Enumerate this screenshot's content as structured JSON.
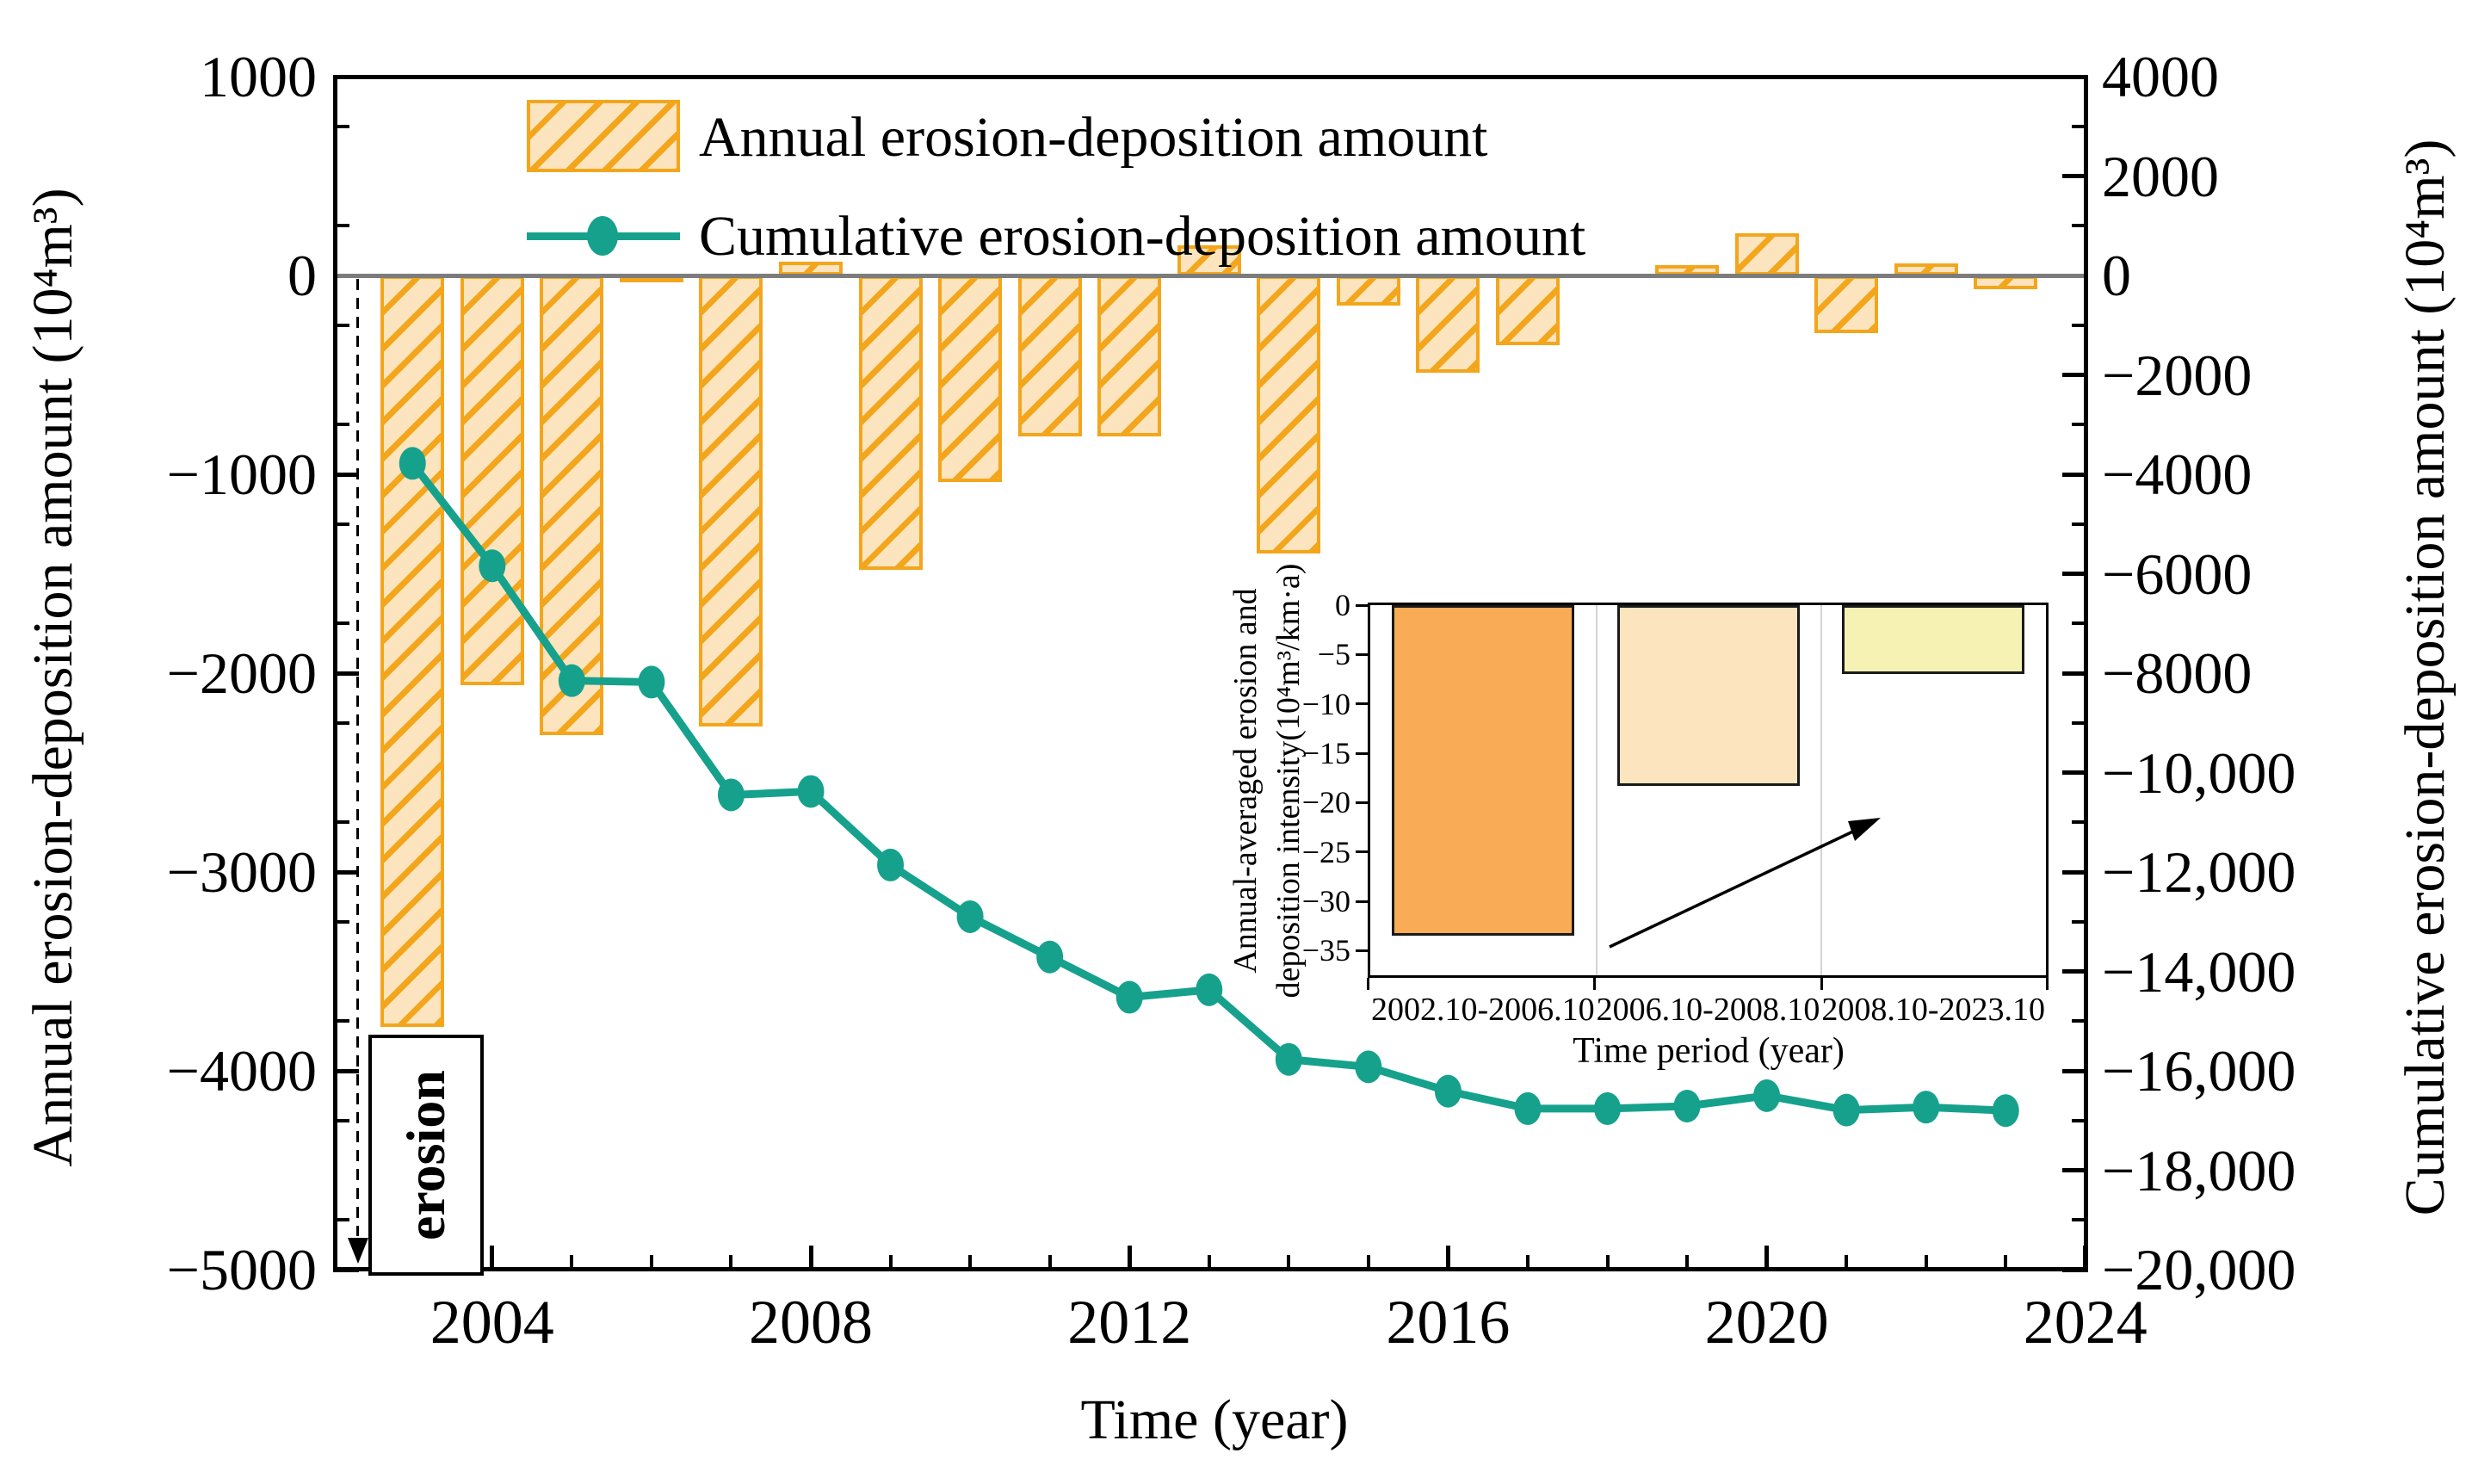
{
  "figure": {
    "background": "#ffffff",
    "x_axis_title": "Time (year)",
    "left_axis_title": "Annual erosion-deposition amount (10⁴m³)",
    "right_axis_title": "Cumulative erosion-deposition amount (10⁴m³)"
  },
  "legend": {
    "annual_label": "Annual erosion-deposition amount",
    "cumulative_label": "Cumulative erosion-deposition amount"
  },
  "erosion_annotation": {
    "label": "erosion"
  },
  "axes": {
    "left": {
      "tick_labels": [
        "1000",
        "0",
        "−1000",
        "−2000",
        "−3000",
        "−4000",
        "−5000"
      ],
      "tick_values": [
        1000,
        0,
        -1000,
        -2000,
        -3000,
        -4000,
        -5000
      ],
      "minor_step": 500,
      "range": [
        -5000,
        1000
      ]
    },
    "right": {
      "tick_labels": [
        "4000",
        "2000",
        "0",
        "−2000",
        "−4000",
        "−6000",
        "−8000",
        "−10,000",
        "−12,000",
        "−14,000",
        "−16,000",
        "−18,000",
        "−20,000"
      ],
      "tick_values": [
        4000,
        2000,
        0,
        -2000,
        -4000,
        -6000,
        -8000,
        -10000,
        -12000,
        -14000,
        -16000,
        -18000,
        -20000
      ],
      "minor_step": 1000,
      "range": [
        -20000,
        4000
      ]
    },
    "x": {
      "tick_labels": [
        "2004",
        "2008",
        "2012",
        "2016",
        "2020",
        "2024"
      ],
      "tick_values": [
        2004,
        2008,
        2012,
        2016,
        2020,
        2024
      ],
      "minor_step": 1,
      "range": [
        2002.14,
        2024
      ]
    }
  },
  "colors": {
    "bar_fill": "#FBE4BE",
    "bar_hatch": "#F3A61C",
    "line": "#16A18C",
    "zero_line": "#7C7C7C",
    "inset_bar_fills": [
      "#F9AB55",
      "#FCE5BE",
      "#F5F2B3"
    ],
    "inset_bar_border": "#1a1a1a"
  },
  "chart_data": [
    {
      "id": "main",
      "type": "bar+line",
      "title": "",
      "xlabel": "Time (year)",
      "ylabel_left": "Annual erosion-deposition amount (10⁴m³)",
      "ylabel_right": "Cumulative erosion-deposition amount (10⁴m³)",
      "x": [
        2003,
        2004,
        2005,
        2006,
        2007,
        2008,
        2009,
        2010,
        2011,
        2012,
        2013,
        2014,
        2015,
        2016,
        2017,
        2018,
        2019,
        2020,
        2021,
        2022,
        2023
      ],
      "series": [
        {
          "name": "Annual erosion-deposition amount",
          "type": "bar",
          "axis": "left",
          "values": [
            -3780,
            -2060,
            -2310,
            -30,
            -2270,
            70,
            -1480,
            -1040,
            -810,
            -810,
            150,
            -1400,
            -150,
            -490,
            -350,
            0,
            50,
            210,
            -290,
            60,
            -70
          ]
        },
        {
          "name": "Cumulative erosion-deposition amount",
          "type": "line",
          "axis": "right",
          "values": [
            -3780,
            -5840,
            -8150,
            -8180,
            -10450,
            -10380,
            -11860,
            -12900,
            -13710,
            -14520,
            -14370,
            -15770,
            -15920,
            -16410,
            -16760,
            -16760,
            -16710,
            -16500,
            -16790,
            -16730,
            -16800
          ]
        }
      ],
      "ylim_left": [
        -5000,
        1000
      ],
      "ylim_right": [
        -20000,
        4000
      ],
      "xlim": [
        2002.14,
        2024
      ],
      "legend_position": "top-left inside",
      "grid": false
    },
    {
      "id": "inset",
      "type": "bar",
      "categories": [
        "2002.10-2006.10",
        "2006.10-2008.10",
        "2008.10-2023.10"
      ],
      "values": [
        -33.5,
        -18.3,
        -7
      ],
      "xlabel": "Time period (year)",
      "ylabel_line1": "Annual-averaged erosion and",
      "ylabel_line2": "deposition intensity(10⁴m³/km·a)",
      "tick_labels": [
        "0",
        "−5",
        "−10",
        "−15",
        "−20",
        "−25",
        "−30",
        "−35"
      ],
      "tick_values": [
        0,
        -5,
        -10,
        -15,
        -20,
        -25,
        -30,
        -35
      ],
      "ylim": [
        -37.5,
        0
      ],
      "grid": "vertical category separators",
      "annotation": "arrow pointing to third bar"
    }
  ]
}
